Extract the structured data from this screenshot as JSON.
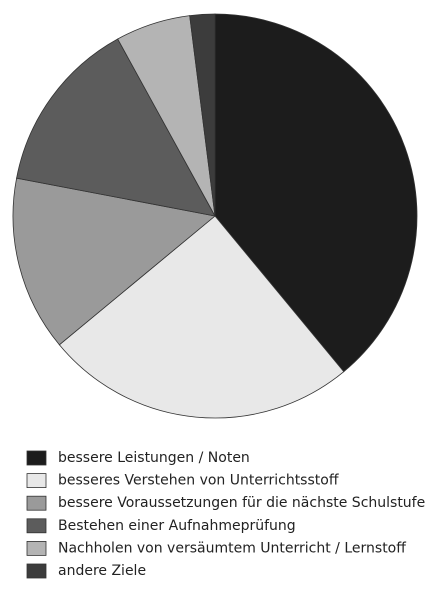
{
  "chart_data": {
    "type": "pie",
    "categories": [
      "bessere Leistungen / Noten",
      "besseres Verstehen von Unterrichtsstoff",
      "bessere Voraussetzungen für die nächste Schulstufe",
      "Bestehen einer Aufnahmeprüfung",
      "Nachholen von versäumtem Unterricht / Lernstoff",
      "andere Ziele"
    ],
    "values": [
      39,
      25,
      14,
      14,
      6,
      2
    ],
    "colors": [
      "#1c1c1c",
      "#e8e8e8",
      "#9a9a9a",
      "#5c5c5c",
      "#b4b4b4",
      "#3c3c3c"
    ]
  }
}
